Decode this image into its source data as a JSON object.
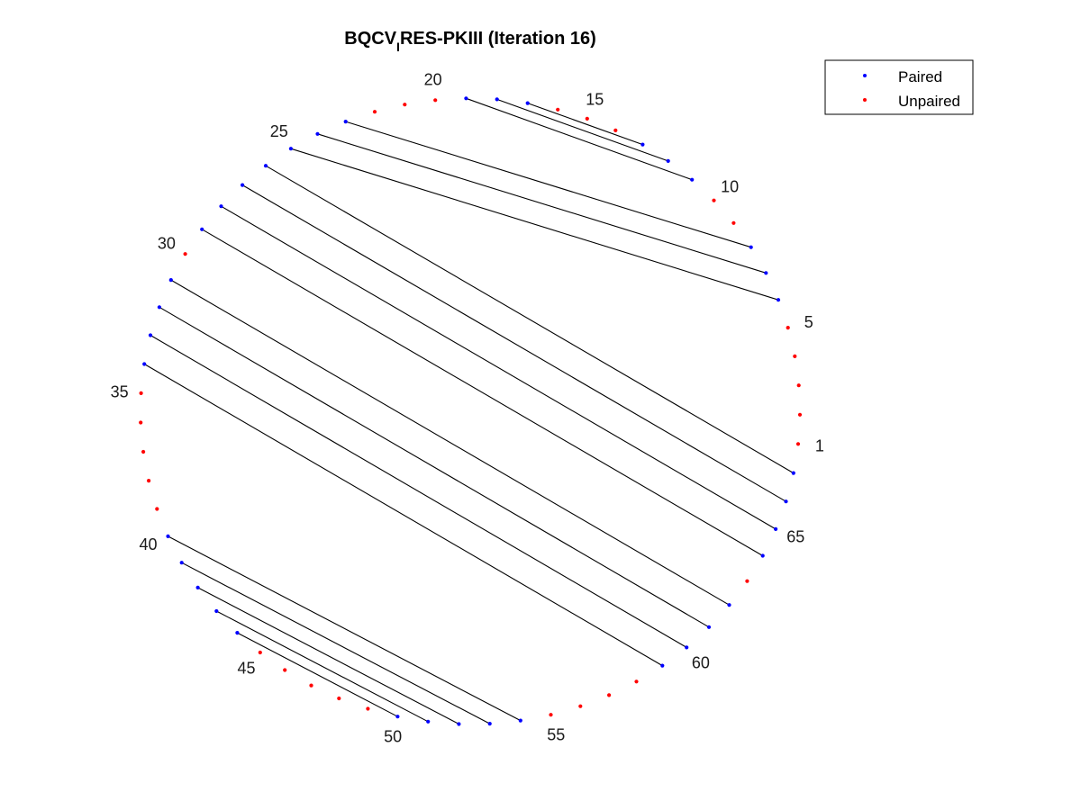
{
  "chart_data": {
    "type": "scatter",
    "title": {
      "prefix": "BQCV",
      "subscript": "I",
      "suffix": "RES-PKIII (Iteration 16)"
    },
    "node_count": 67,
    "position_labels": [
      1,
      5,
      10,
      15,
      20,
      25,
      30,
      35,
      40,
      45,
      50,
      55,
      60,
      65
    ],
    "pairs": [
      [
        6,
        25
      ],
      [
        7,
        24
      ],
      [
        8,
        23
      ],
      [
        11,
        19
      ],
      [
        12,
        18
      ],
      [
        13,
        17
      ],
      [
        26,
        67
      ],
      [
        27,
        66
      ],
      [
        28,
        65
      ],
      [
        29,
        64
      ],
      [
        31,
        62
      ],
      [
        32,
        61
      ],
      [
        33,
        60
      ],
      [
        34,
        59
      ],
      [
        40,
        54
      ],
      [
        41,
        53
      ],
      [
        42,
        52
      ],
      [
        43,
        51
      ],
      [
        44,
        50
      ]
    ],
    "series": [
      {
        "name": "Paired",
        "color": "#0000ff",
        "marker": "dot"
      },
      {
        "name": "Unpaired",
        "color": "#ff0000",
        "marker": "dot"
      }
    ],
    "legend_position": "top-right",
    "grid": false
  }
}
